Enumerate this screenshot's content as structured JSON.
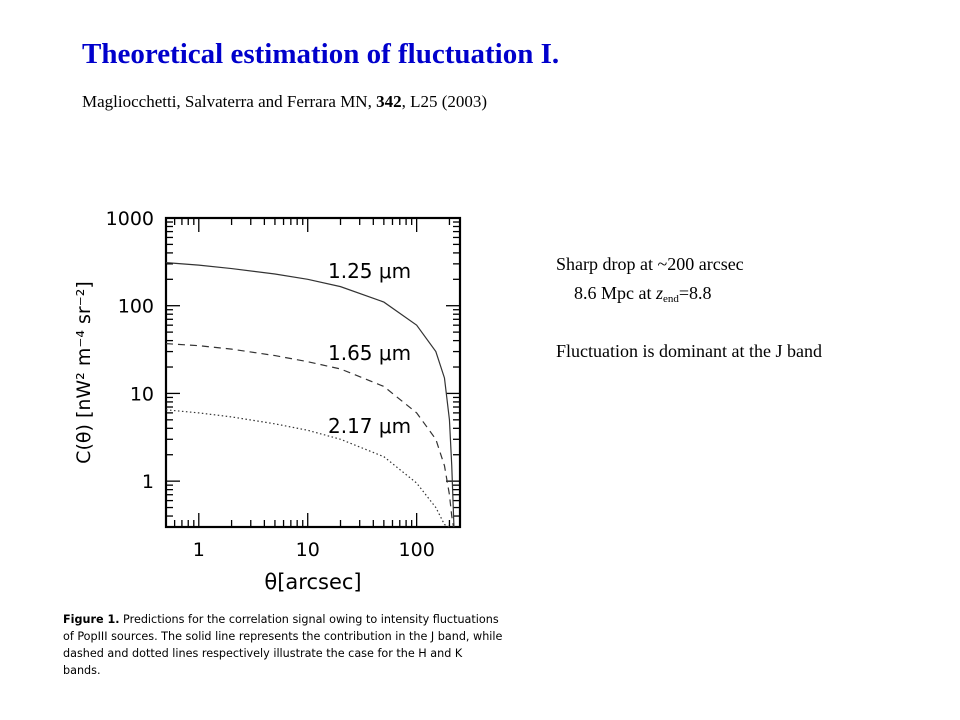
{
  "slide": {
    "title": "Theoretical estimation of fluctuation I.",
    "citation_authors": "Magliocchetti, Salvaterra and Ferrara MN, ",
    "citation_volume": "342",
    "citation_rest": ", L25 (2003)"
  },
  "notes": {
    "line1": "Sharp drop at ~200 arcsec",
    "line2_prefix": "8.6 Mpc at ",
    "line2_var": "z",
    "line2_sub": "end",
    "line2_suffix": "=8.8",
    "line3": "Fluctuation is dominant at the J band"
  },
  "figure_caption": {
    "label": "Figure 1.",
    "text": "Predictions for the correlation signal owing to intensity fluctuations of PopIII sources. The solid line represents the contribution in the J band, while dashed and dotted lines respectively illustrate the case for the H and K bands."
  },
  "colors": {
    "title": "#0000cc",
    "axes": "#000000",
    "lines": "#333333"
  },
  "chart_data": {
    "type": "line",
    "title": "",
    "xlabel": "θ[arcsec]",
    "ylabel": "C(θ) [nW² m⁻⁴ sr⁻²]",
    "xscale": "log",
    "yscale": "log",
    "xlim": [
      0.5,
      250
    ],
    "ylim": [
      0.3,
      1000
    ],
    "x_ticks": [
      1,
      10,
      100
    ],
    "x_tick_labels": [
      "1",
      "10",
      "100"
    ],
    "y_ticks": [
      1,
      10,
      100,
      1000
    ],
    "y_tick_labels": [
      "1",
      "10",
      "100",
      "1000"
    ],
    "grid": false,
    "series": [
      {
        "name": "1.25 μm",
        "style": "solid",
        "x": [
          0.5,
          1,
          2,
          5,
          10,
          20,
          50,
          100,
          150,
          180,
          200,
          210,
          220
        ],
        "y": [
          310,
          290,
          265,
          230,
          200,
          165,
          110,
          60,
          30,
          15,
          5,
          1.5,
          0.3
        ]
      },
      {
        "name": "1.65 μm",
        "style": "dashed",
        "x": [
          0.5,
          1,
          2,
          5,
          10,
          20,
          50,
          100,
          150,
          180,
          200,
          210,
          218
        ],
        "y": [
          37,
          35,
          32,
          27,
          23,
          19,
          12,
          6,
          3,
          1.5,
          0.7,
          0.4,
          0.3
        ]
      },
      {
        "name": "2.17 μm",
        "style": "dotted",
        "x": [
          0.5,
          1,
          2,
          5,
          10,
          20,
          50,
          100,
          150,
          180,
          200,
          210
        ],
        "y": [
          6.5,
          6.0,
          5.4,
          4.5,
          3.8,
          3.0,
          1.9,
          0.95,
          0.5,
          0.32,
          0.3,
          0.3
        ]
      }
    ],
    "annotations": [
      "1.25 μm",
      "1.65 μm",
      "2.17 μm"
    ]
  }
}
